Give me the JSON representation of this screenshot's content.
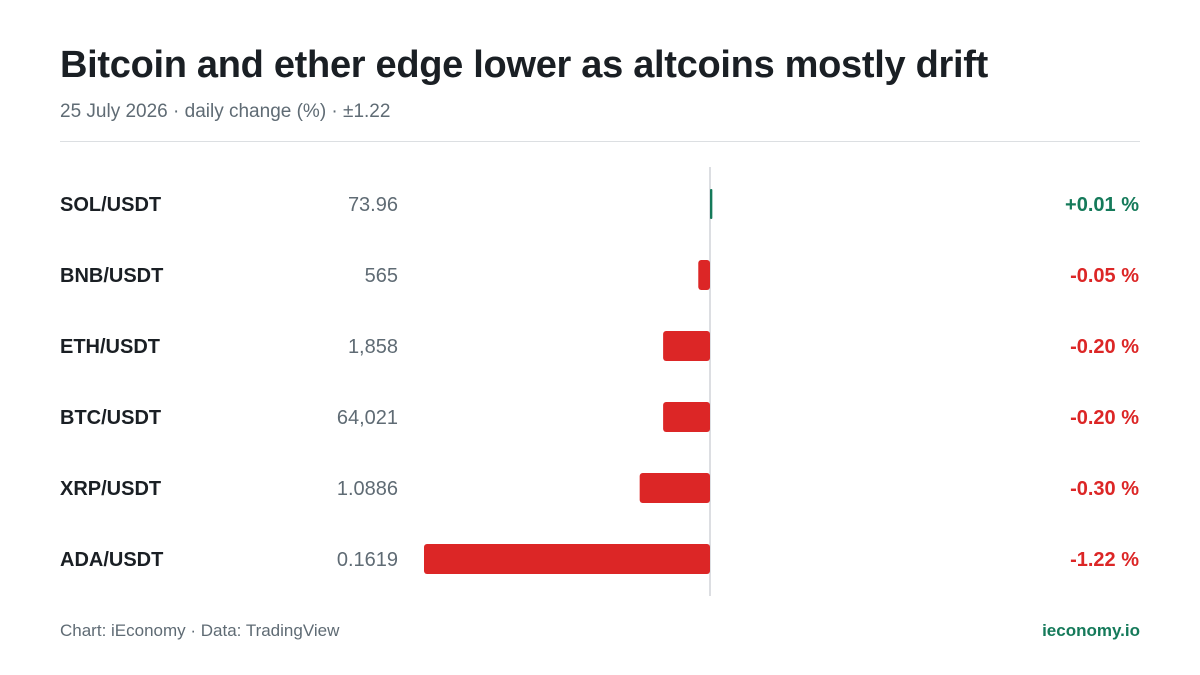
{
  "chart_data": {
    "type": "bar",
    "orientation": "horizontal",
    "title": "Bitcoin and ether edge lower as altcoins mostly drift",
    "subtitle": "25 July 2026 · daily change (%) · ±1.22",
    "categories": [
      "SOL/USDT",
      "BNB/USDT",
      "ETH/USDT",
      "BTC/USDT",
      "XRP/USDT",
      "ADA/USDT"
    ],
    "prices": [
      "73.96",
      "565",
      "1,858",
      "64,021",
      "1.0886",
      "0.1619"
    ],
    "values": [
      0.01,
      -0.05,
      -0.2,
      -0.2,
      -0.3,
      -1.22
    ],
    "value_labels": [
      "+0.01 %",
      "-0.05 %",
      "-0.20 %",
      "-0.20 %",
      "-0.30 %",
      "-1.22 %"
    ],
    "xlim": [
      -1.22,
      1.22
    ],
    "grid": false,
    "legend": "none"
  },
  "footer": {
    "source": "Chart: iEconomy · Data: TradingView",
    "brand": "ieconomy.io"
  },
  "colors": {
    "positive": "#157a5a",
    "negative": "#dc2626",
    "axis": "#d0d4d8",
    "label": "#1a1f24",
    "price": "#5f6b74"
  }
}
